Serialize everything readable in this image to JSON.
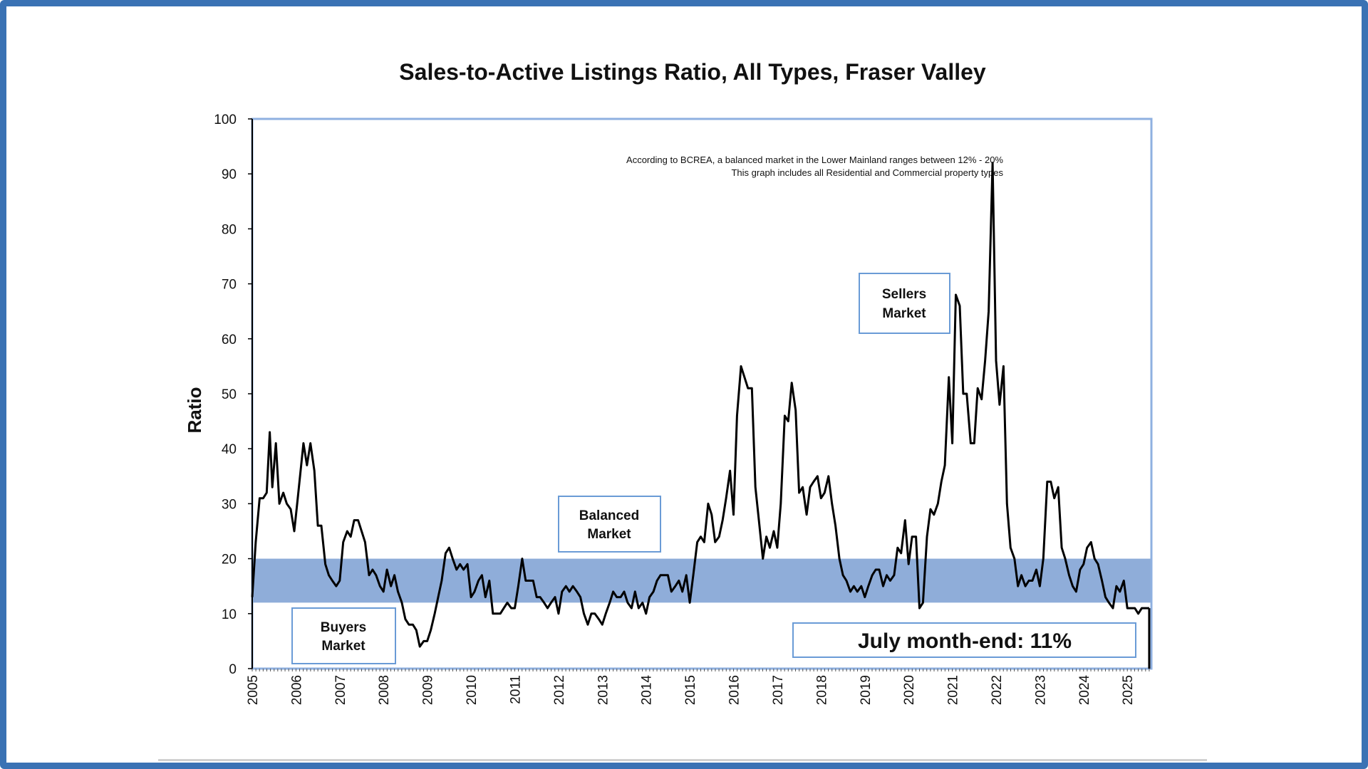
{
  "colors": {
    "frame_border": "#3a72b4",
    "plot_border": "#8fb0e0",
    "balanced_band": "#8fadd9",
    "series_line": "#000000",
    "box_border": "#6a9bd6"
  },
  "chart_data": {
    "type": "line",
    "title": "Sales-to-Active Listings Ratio, All Types, Fraser Valley",
    "ylabel": "Ratio",
    "xlabel": "",
    "ylim": [
      0,
      100
    ],
    "yticks": [
      0,
      10,
      20,
      30,
      40,
      50,
      60,
      70,
      80,
      90,
      100
    ],
    "xlim": [
      2005,
      2025.55
    ],
    "xticks": [
      "2005",
      "2006",
      "2007",
      "2008",
      "2009",
      "2010",
      "2011",
      "2012",
      "2013",
      "2014",
      "2015",
      "2016",
      "2017",
      "2018",
      "2019",
      "2020",
      "2021",
      "2022",
      "2023",
      "2024",
      "2025"
    ],
    "grid": false,
    "band": {
      "label": "Balanced Market",
      "from": 12,
      "to": 20
    },
    "notes": [
      "According to BCREA, a balanced market in the Lower Mainland ranges between 12% - 20%",
      "This graph includes all Residential and Commercial property types"
    ],
    "annotations": {
      "buyers": [
        "Buyers",
        "Market"
      ],
      "balanced": [
        "Balanced",
        "Market"
      ],
      "sellers": [
        "Sellers",
        "Market"
      ],
      "callout": "July month-end: 11%"
    },
    "series": [
      {
        "points": [
          [
            2005.0,
            13
          ],
          [
            2005.08,
            23
          ],
          [
            2005.17,
            31
          ],
          [
            2005.25,
            31
          ],
          [
            2005.33,
            32
          ],
          [
            2005.4,
            43
          ],
          [
            2005.46,
            33
          ],
          [
            2005.54,
            41
          ],
          [
            2005.62,
            30
          ],
          [
            2005.71,
            32
          ],
          [
            2005.79,
            30
          ],
          [
            2005.88,
            29
          ],
          [
            2005.96,
            25
          ],
          [
            2006.04,
            31
          ],
          [
            2006.17,
            41
          ],
          [
            2006.25,
            37
          ],
          [
            2006.33,
            41
          ],
          [
            2006.42,
            36
          ],
          [
            2006.5,
            26
          ],
          [
            2006.58,
            26
          ],
          [
            2006.67,
            19
          ],
          [
            2006.75,
            17
          ],
          [
            2006.83,
            16
          ],
          [
            2006.92,
            15
          ],
          [
            2007.0,
            16
          ],
          [
            2007.08,
            23
          ],
          [
            2007.17,
            25
          ],
          [
            2007.25,
            24
          ],
          [
            2007.33,
            27
          ],
          [
            2007.42,
            27
          ],
          [
            2007.5,
            25
          ],
          [
            2007.58,
            23
          ],
          [
            2007.67,
            17
          ],
          [
            2007.75,
            18
          ],
          [
            2007.83,
            17
          ],
          [
            2007.92,
            15
          ],
          [
            2008.0,
            14
          ],
          [
            2008.08,
            18
          ],
          [
            2008.17,
            15
          ],
          [
            2008.25,
            17
          ],
          [
            2008.33,
            14
          ],
          [
            2008.42,
            12
          ],
          [
            2008.5,
            9
          ],
          [
            2008.58,
            8
          ],
          [
            2008.67,
            8
          ],
          [
            2008.75,
            7
          ],
          [
            2008.83,
            4
          ],
          [
            2008.92,
            5
          ],
          [
            2009.0,
            5
          ],
          [
            2009.08,
            7
          ],
          [
            2009.17,
            10
          ],
          [
            2009.25,
            13
          ],
          [
            2009.33,
            16
          ],
          [
            2009.42,
            21
          ],
          [
            2009.5,
            22
          ],
          [
            2009.58,
            20
          ],
          [
            2009.67,
            18
          ],
          [
            2009.75,
            19
          ],
          [
            2009.83,
            18
          ],
          [
            2009.92,
            19
          ],
          [
            2010.0,
            13
          ],
          [
            2010.08,
            14
          ],
          [
            2010.17,
            16
          ],
          [
            2010.25,
            17
          ],
          [
            2010.33,
            13
          ],
          [
            2010.42,
            16
          ],
          [
            2010.5,
            10
          ],
          [
            2010.58,
            10
          ],
          [
            2010.67,
            10
          ],
          [
            2010.75,
            11
          ],
          [
            2010.83,
            12
          ],
          [
            2010.92,
            11
          ],
          [
            2011.0,
            11
          ],
          [
            2011.08,
            15
          ],
          [
            2011.17,
            20
          ],
          [
            2011.25,
            16
          ],
          [
            2011.33,
            16
          ],
          [
            2011.42,
            16
          ],
          [
            2011.5,
            13
          ],
          [
            2011.58,
            13
          ],
          [
            2011.67,
            12
          ],
          [
            2011.75,
            11
          ],
          [
            2011.83,
            12
          ],
          [
            2011.92,
            13
          ],
          [
            2012.0,
            10
          ],
          [
            2012.08,
            14
          ],
          [
            2012.17,
            15
          ],
          [
            2012.25,
            14
          ],
          [
            2012.33,
            15
          ],
          [
            2012.42,
            14
          ],
          [
            2012.5,
            13
          ],
          [
            2012.58,
            10
          ],
          [
            2012.67,
            8
          ],
          [
            2012.75,
            10
          ],
          [
            2012.83,
            10
          ],
          [
            2012.92,
            9
          ],
          [
            2013.0,
            8
          ],
          [
            2013.08,
            10
          ],
          [
            2013.17,
            12
          ],
          [
            2013.25,
            14
          ],
          [
            2013.33,
            13
          ],
          [
            2013.42,
            13
          ],
          [
            2013.5,
            14
          ],
          [
            2013.58,
            12
          ],
          [
            2013.67,
            11
          ],
          [
            2013.75,
            14
          ],
          [
            2013.83,
            11
          ],
          [
            2013.92,
            12
          ],
          [
            2014.0,
            10
          ],
          [
            2014.08,
            13
          ],
          [
            2014.17,
            14
          ],
          [
            2014.25,
            16
          ],
          [
            2014.33,
            17
          ],
          [
            2014.42,
            17
          ],
          [
            2014.5,
            17
          ],
          [
            2014.58,
            14
          ],
          [
            2014.67,
            15
          ],
          [
            2014.75,
            16
          ],
          [
            2014.83,
            14
          ],
          [
            2014.92,
            17
          ],
          [
            2015.0,
            12
          ],
          [
            2015.08,
            17
          ],
          [
            2015.17,
            23
          ],
          [
            2015.25,
            24
          ],
          [
            2015.33,
            23
          ],
          [
            2015.42,
            30
          ],
          [
            2015.5,
            28
          ],
          [
            2015.58,
            23
          ],
          [
            2015.67,
            24
          ],
          [
            2015.75,
            27
          ],
          [
            2015.83,
            31
          ],
          [
            2015.92,
            36
          ],
          [
            2016.0,
            28
          ],
          [
            2016.08,
            46
          ],
          [
            2016.17,
            55
          ],
          [
            2016.25,
            53
          ],
          [
            2016.33,
            51
          ],
          [
            2016.42,
            51
          ],
          [
            2016.5,
            33
          ],
          [
            2016.58,
            27
          ],
          [
            2016.67,
            20
          ],
          [
            2016.75,
            24
          ],
          [
            2016.83,
            22
          ],
          [
            2016.92,
            25
          ],
          [
            2017.0,
            22
          ],
          [
            2017.08,
            30
          ],
          [
            2017.17,
            46
          ],
          [
            2017.25,
            45
          ],
          [
            2017.33,
            52
          ],
          [
            2017.42,
            47
          ],
          [
            2017.5,
            32
          ],
          [
            2017.58,
            33
          ],
          [
            2017.67,
            28
          ],
          [
            2017.75,
            33
          ],
          [
            2017.83,
            34
          ],
          [
            2017.92,
            35
          ],
          [
            2018.0,
            31
          ],
          [
            2018.08,
            32
          ],
          [
            2018.17,
            35
          ],
          [
            2018.25,
            30
          ],
          [
            2018.33,
            26
          ],
          [
            2018.42,
            20
          ],
          [
            2018.5,
            17
          ],
          [
            2018.58,
            16
          ],
          [
            2018.67,
            14
          ],
          [
            2018.75,
            15
          ],
          [
            2018.83,
            14
          ],
          [
            2018.92,
            15
          ],
          [
            2019.0,
            13
          ],
          [
            2019.08,
            15
          ],
          [
            2019.17,
            17
          ],
          [
            2019.25,
            18
          ],
          [
            2019.33,
            18
          ],
          [
            2019.42,
            15
          ],
          [
            2019.5,
            17
          ],
          [
            2019.58,
            16
          ],
          [
            2019.67,
            17
          ],
          [
            2019.75,
            22
          ],
          [
            2019.83,
            21
          ],
          [
            2019.92,
            27
          ],
          [
            2020.0,
            19
          ],
          [
            2020.08,
            24
          ],
          [
            2020.17,
            24
          ],
          [
            2020.25,
            11
          ],
          [
            2020.33,
            12
          ],
          [
            2020.42,
            24
          ],
          [
            2020.5,
            29
          ],
          [
            2020.58,
            28
          ],
          [
            2020.67,
            30
          ],
          [
            2020.75,
            34
          ],
          [
            2020.83,
            37
          ],
          [
            2020.92,
            53
          ],
          [
            2021.0,
            41
          ],
          [
            2021.08,
            68
          ],
          [
            2021.17,
            66
          ],
          [
            2021.25,
            50
          ],
          [
            2021.33,
            50
          ],
          [
            2021.42,
            41
          ],
          [
            2021.5,
            41
          ],
          [
            2021.58,
            51
          ],
          [
            2021.67,
            49
          ],
          [
            2021.75,
            56
          ],
          [
            2021.83,
            65
          ],
          [
            2021.92,
            92
          ],
          [
            2022.0,
            56
          ],
          [
            2022.08,
            48
          ],
          [
            2022.17,
            55
          ],
          [
            2022.25,
            30
          ],
          [
            2022.33,
            22
          ],
          [
            2022.42,
            20
          ],
          [
            2022.5,
            15
          ],
          [
            2022.58,
            17
          ],
          [
            2022.67,
            15
          ],
          [
            2022.75,
            16
          ],
          [
            2022.83,
            16
          ],
          [
            2022.92,
            18
          ],
          [
            2023.0,
            15
          ],
          [
            2023.08,
            20
          ],
          [
            2023.17,
            34
          ],
          [
            2023.25,
            34
          ],
          [
            2023.33,
            31
          ],
          [
            2023.42,
            33
          ],
          [
            2023.5,
            22
          ],
          [
            2023.58,
            20
          ],
          [
            2023.67,
            17
          ],
          [
            2023.75,
            15
          ],
          [
            2023.83,
            14
          ],
          [
            2023.92,
            18
          ],
          [
            2024.0,
            19
          ],
          [
            2024.08,
            22
          ],
          [
            2024.17,
            23
          ],
          [
            2024.25,
            20
          ],
          [
            2024.33,
            19
          ],
          [
            2024.42,
            16
          ],
          [
            2024.5,
            13
          ],
          [
            2024.58,
            12
          ],
          [
            2024.67,
            11
          ],
          [
            2024.75,
            15
          ],
          [
            2024.83,
            14
          ],
          [
            2024.92,
            16
          ],
          [
            2025.0,
            11
          ],
          [
            2025.08,
            11
          ],
          [
            2025.17,
            11
          ],
          [
            2025.25,
            10
          ],
          [
            2025.33,
            11
          ],
          [
            2025.42,
            11
          ],
          [
            2025.5,
            11
          ]
        ]
      }
    ]
  }
}
